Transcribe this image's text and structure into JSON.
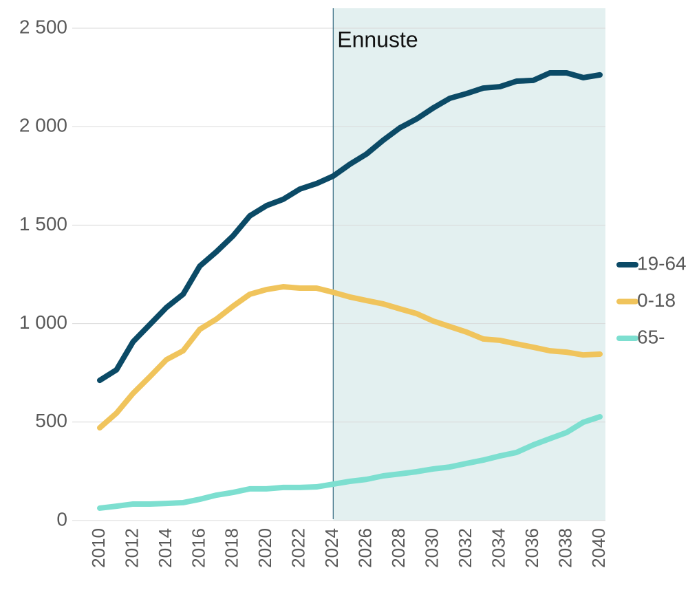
{
  "chart_data": {
    "type": "line",
    "x": [
      2010,
      2011,
      2012,
      2013,
      2014,
      2015,
      2016,
      2017,
      2018,
      2019,
      2020,
      2021,
      2022,
      2023,
      2024,
      2025,
      2026,
      2027,
      2028,
      2029,
      2030,
      2031,
      2032,
      2033,
      2034,
      2035,
      2036,
      2037,
      2038,
      2039,
      2040
    ],
    "series": [
      {
        "name": "19-64",
        "color": "#0b4a66",
        "values": [
          712,
          765,
          908,
          995,
          1082,
          1149,
          1292,
          1365,
          1446,
          1547,
          1599,
          1631,
          1683,
          1711,
          1749,
          1809,
          1861,
          1931,
          1994,
          2039,
          2095,
          2144,
          2168,
          2196,
          2203,
          2231,
          2235,
          2273,
          2273,
          2249,
          2263
        ]
      },
      {
        "name": "0-18",
        "color": "#f0c45c",
        "values": [
          471,
          545,
          646,
          730,
          817,
          862,
          971,
          1023,
          1089,
          1149,
          1173,
          1187,
          1180,
          1180,
          1159,
          1135,
          1117,
          1100,
          1075,
          1051,
          1013,
          985,
          957,
          922,
          915,
          897,
          880,
          862,
          855,
          841,
          845
        ]
      },
      {
        "name": "65-",
        "color": "#7ddfd0",
        "values": [
          63,
          73,
          84,
          84,
          87,
          91,
          108,
          129,
          143,
          161,
          161,
          168,
          168,
          171,
          185,
          199,
          209,
          227,
          237,
          248,
          262,
          272,
          290,
          307,
          328,
          346,
          384,
          416,
          447,
          499,
          527
        ]
      }
    ],
    "xlim": [
      2010,
      2040
    ],
    "xticks": [
      2010,
      2012,
      2014,
      2016,
      2018,
      2020,
      2022,
      2024,
      2026,
      2028,
      2030,
      2032,
      2034,
      2036,
      2038,
      2040
    ],
    "ylim": [
      0,
      2500
    ],
    "yticks": [
      0,
      500,
      {
        "value": 1000,
        "label": "1 000"
      },
      {
        "value": 1500,
        "label": "1 500"
      },
      {
        "value": 2000,
        "label": "2 000"
      },
      {
        "value": 2500,
        "label": "2 500"
      }
    ],
    "grid": true,
    "legend": "right",
    "annotations": [
      {
        "text": "Ennuste",
        "x": 2024,
        "color": "#e3f0f0"
      }
    ]
  }
}
